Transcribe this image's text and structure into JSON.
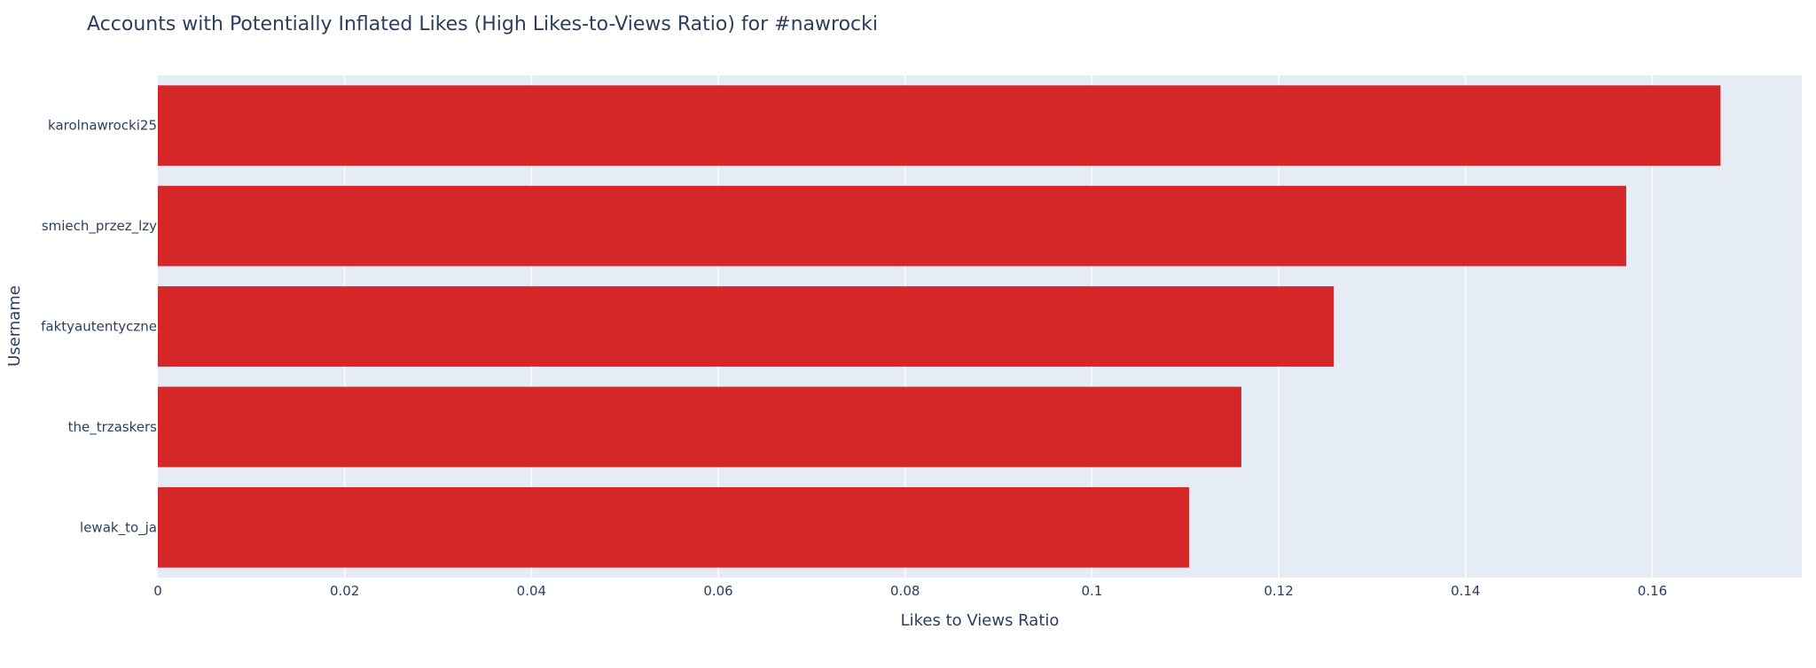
{
  "chart_data": {
    "type": "bar",
    "orientation": "horizontal",
    "title": "Accounts with Potentially Inflated Likes (High Likes-to-Views Ratio) for #nawrocki",
    "xlabel": "Likes to Views Ratio",
    "ylabel": "Username",
    "categories": [
      "karolnawrocki25",
      "smiech_przez_lzy",
      "faktyautentyczne",
      "the_trzaskers",
      "lewak_to_ja"
    ],
    "values": [
      0.1673,
      0.1572,
      0.1259,
      0.116,
      0.1104
    ],
    "xlim": [
      0,
      0.176
    ],
    "xticks": [
      0,
      0.02,
      0.04,
      0.06,
      0.08,
      0.1,
      0.12,
      0.14,
      0.16
    ],
    "xtick_labels": [
      "0",
      "0.02",
      "0.04",
      "0.06",
      "0.08",
      "0.1",
      "0.12",
      "0.14",
      "0.16"
    ],
    "grid": true,
    "bar_color": "#d62728",
    "plot_background": "#e5ecf6",
    "text_color": "#2a3f5f"
  }
}
